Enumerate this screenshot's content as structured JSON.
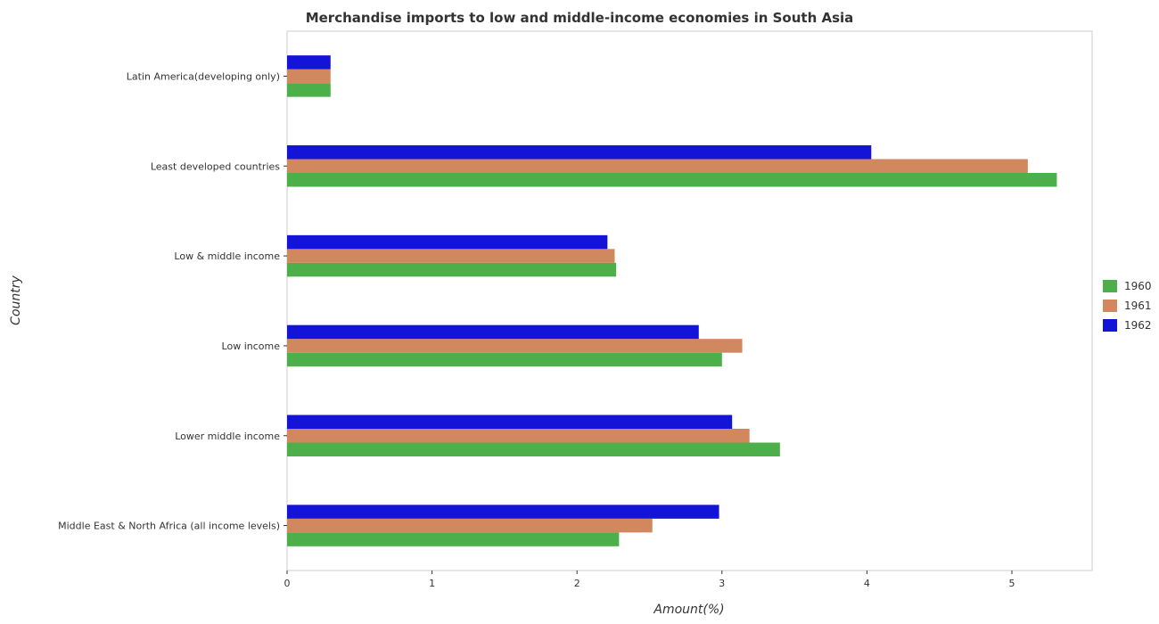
{
  "chart_data": {
    "type": "bar",
    "orientation": "horizontal",
    "title": "Merchandise imports to low and middle-income economies in South Asia",
    "xlabel": "Amount(%)",
    "ylabel": "Country",
    "xlim": [
      0,
      5.55
    ],
    "xticks": [
      "0",
      "1",
      "2",
      "3",
      "4",
      "5"
    ],
    "xtick_values": [
      0,
      1,
      2,
      3,
      4,
      5
    ],
    "categories": [
      "Latin America(developing only)",
      "Least developed countries",
      "Low & middle income",
      "Low income",
      "Lower middle income",
      "Middle East & North Africa (all income levels)"
    ],
    "series": [
      {
        "name": "1960",
        "color": "#4daf4a",
        "values": [
          0.3,
          5.31,
          2.27,
          3.0,
          3.4,
          2.29
        ]
      },
      {
        "name": "1961",
        "color": "#d2885e",
        "values": [
          0.3,
          5.11,
          2.26,
          3.14,
          3.19,
          2.52
        ]
      },
      {
        "name": "1962",
        "color": "#1414d9",
        "values": [
          0.3,
          4.03,
          2.21,
          2.84,
          3.07,
          2.98
        ]
      }
    ],
    "grid": false,
    "legend_position": "right"
  }
}
